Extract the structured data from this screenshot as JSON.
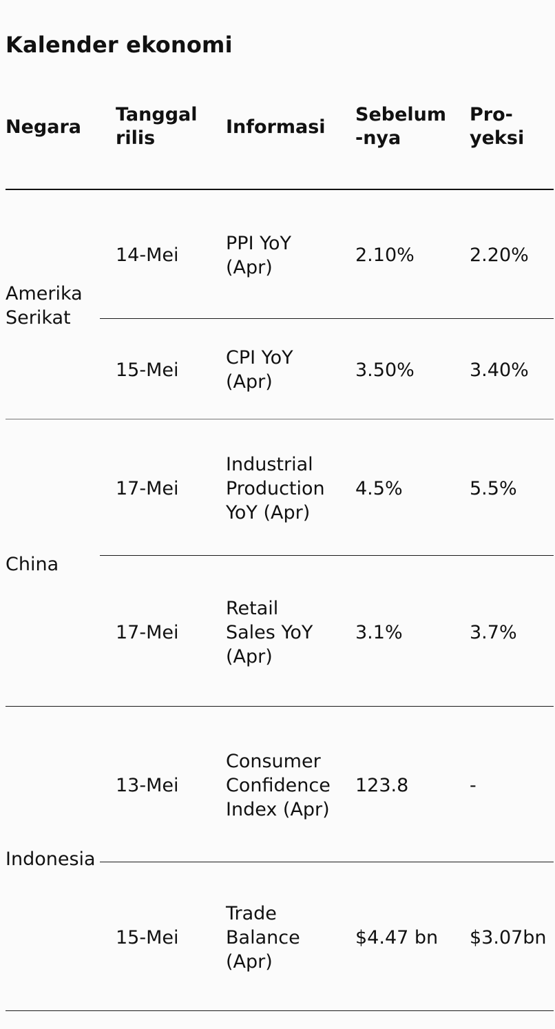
{
  "title": "Kalender ekonomi",
  "headers": {
    "country": "Negara",
    "release_date": [
      "Tanggal",
      "rilis"
    ],
    "info": "Informasi",
    "previous": [
      "Sebelum",
      "-nya"
    ],
    "projection": [
      "Pro-",
      "yeksi"
    ]
  },
  "groups": [
    {
      "country": [
        "Amerika",
        "Serikat"
      ],
      "rows": [
        {
          "date": "14-Mei",
          "info": [
            "PPI YoY",
            "(Apr)"
          ],
          "previous": "2.10%",
          "projection": "2.20%"
        },
        {
          "date": "15-Mei",
          "info": [
            "CPI YoY",
            "(Apr)"
          ],
          "previous": "3.50%",
          "projection": "3.40%"
        }
      ]
    },
    {
      "country": [
        "China"
      ],
      "rows": [
        {
          "date": "17-Mei",
          "info": [
            "Industrial",
            "Production",
            "YoY (Apr)"
          ],
          "previous": "4.5%",
          "projection": "5.5%"
        },
        {
          "date": "17-Mei",
          "info": [
            "Retail",
            "Sales YoY",
            "(Apr)"
          ],
          "previous": "3.1%",
          "projection": "3.7%"
        }
      ]
    },
    {
      "country": [
        "Indonesia"
      ],
      "rows": [
        {
          "date": "13-Mei",
          "info": [
            "Consumer",
            "Confidence",
            "Index (Apr)"
          ],
          "previous": "123.8",
          "projection": "-"
        },
        {
          "date": "15-Mei",
          "info": [
            "Trade",
            "Balance",
            "(Apr)"
          ],
          "previous": "$4.47 bn",
          "projection": "$3.07bn"
        }
      ]
    }
  ]
}
